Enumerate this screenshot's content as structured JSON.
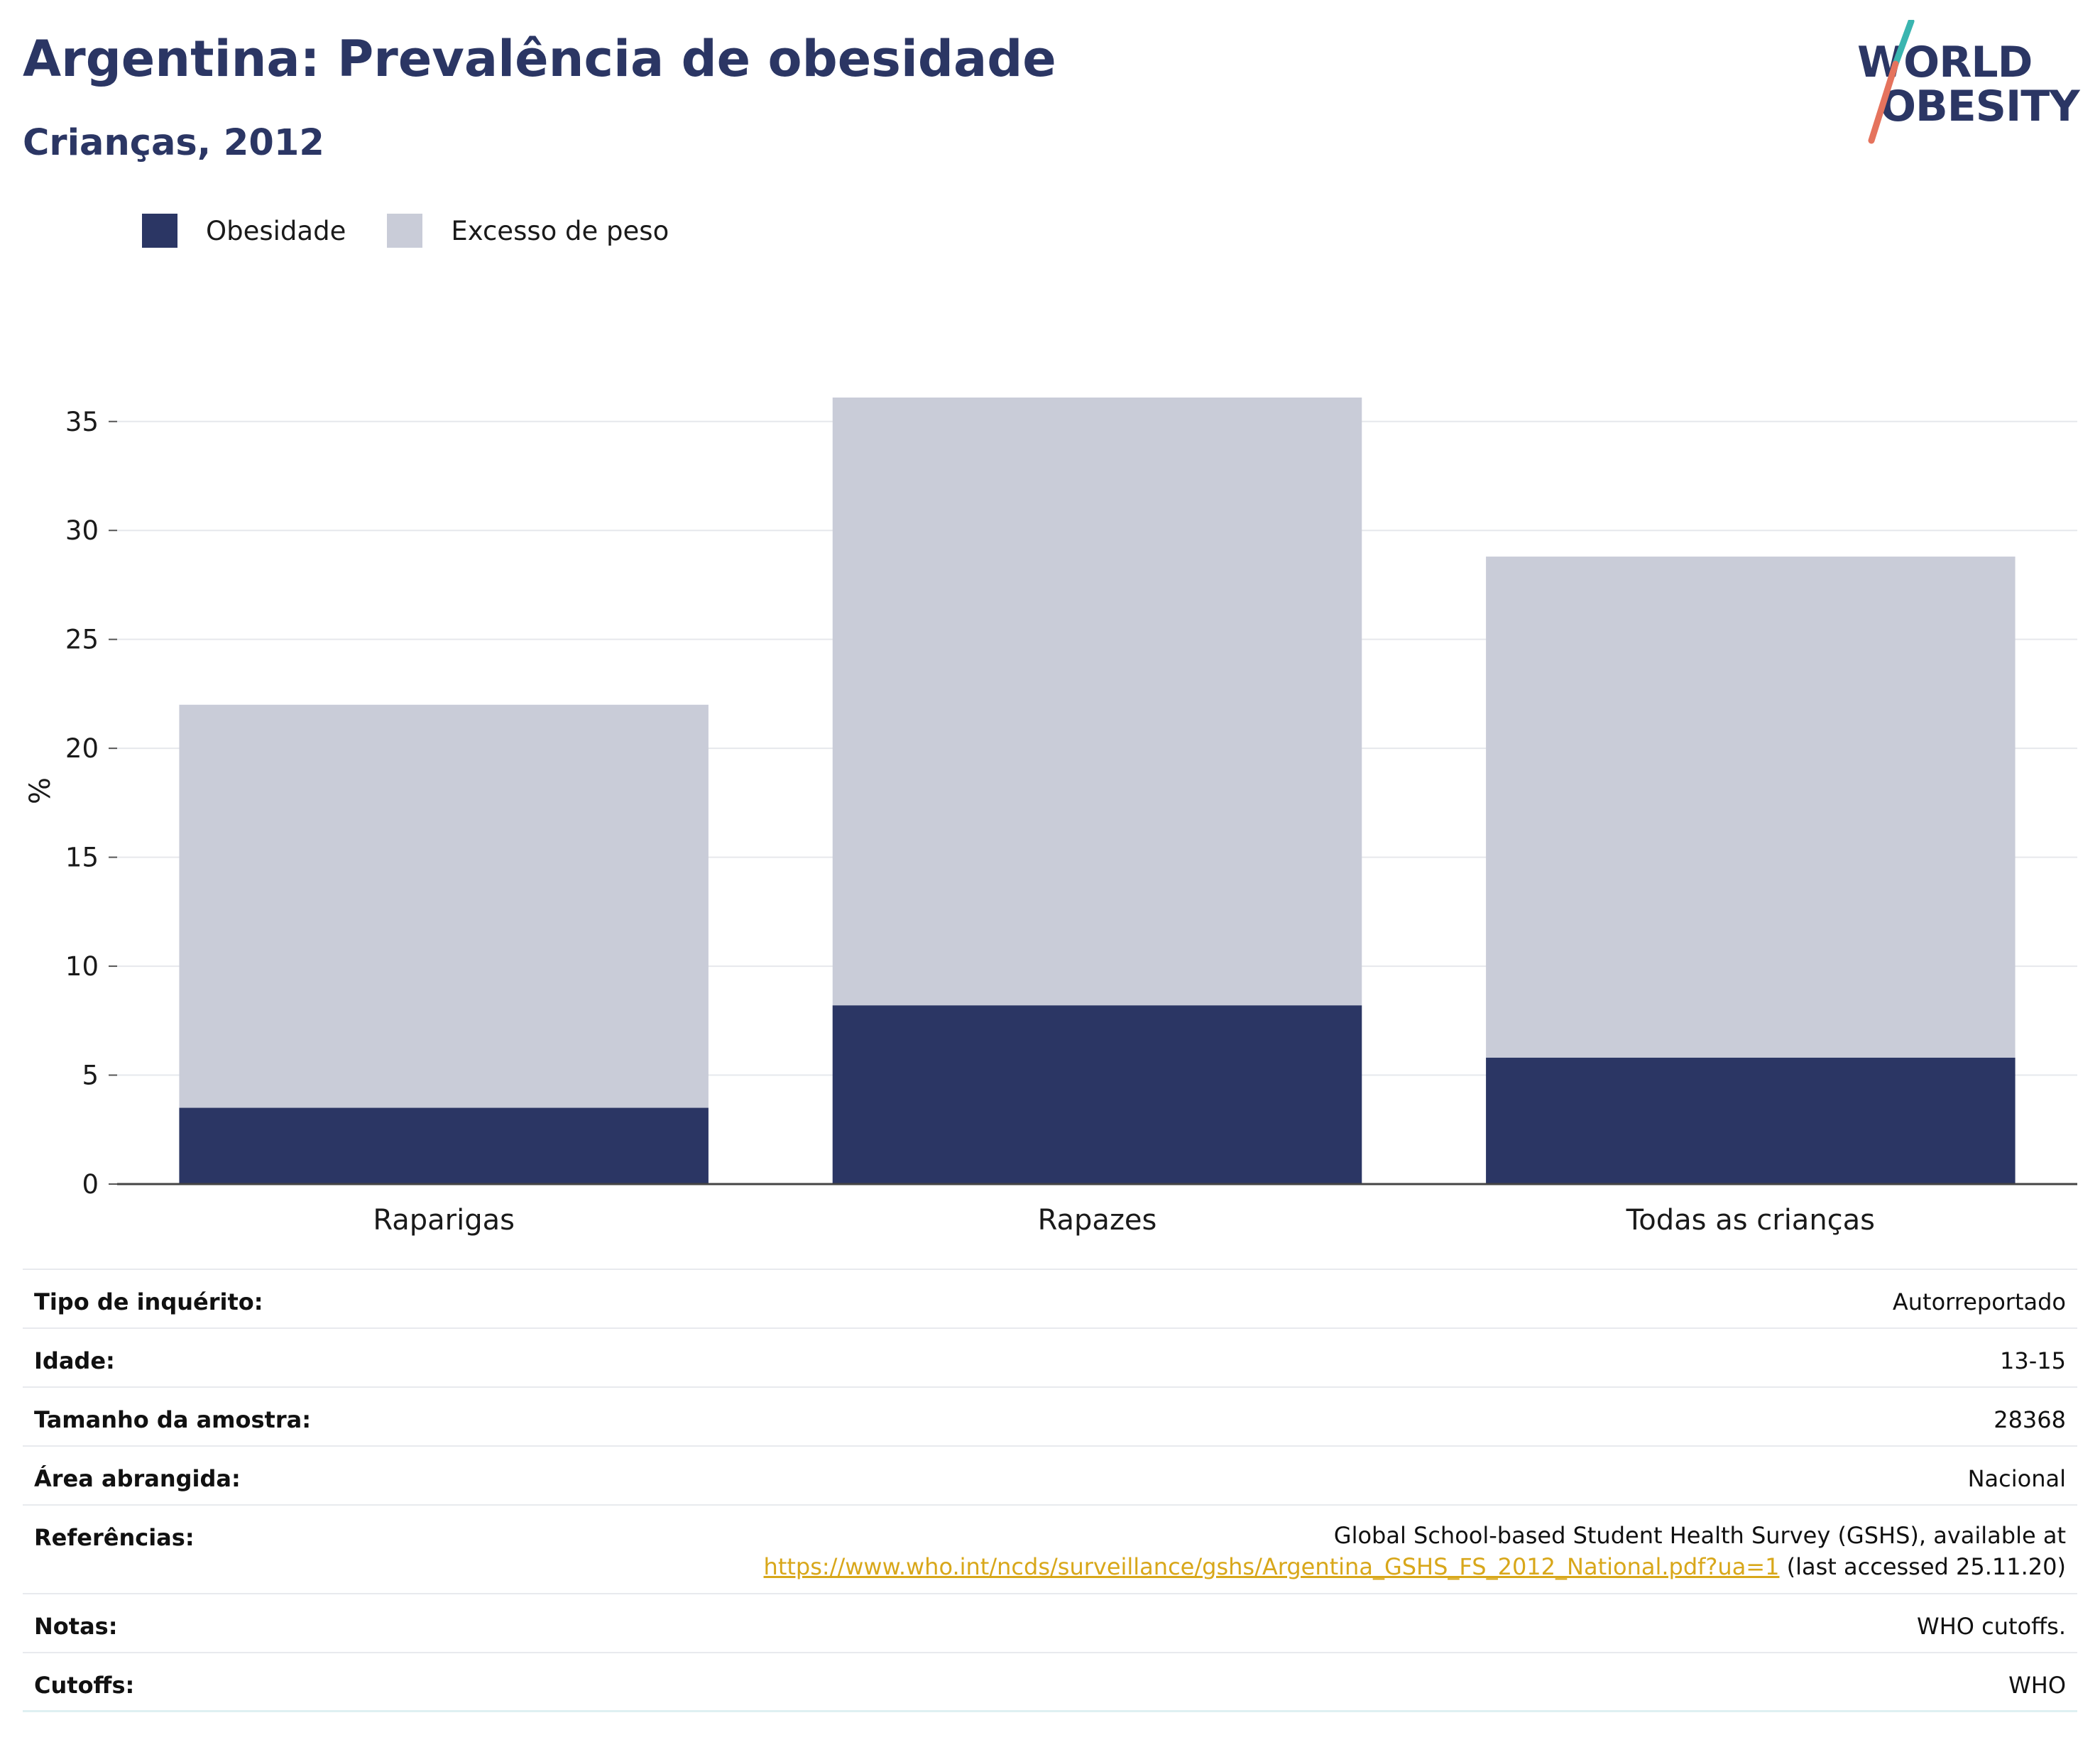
{
  "header": {
    "title": "Argentina: Prevalência de obesidade",
    "subtitle": "Crianças, 2012"
  },
  "logo": {
    "line1": "WORLD",
    "line2": "OBESITY",
    "slash_colors": [
      "#3ab5b0",
      "#e5735d"
    ]
  },
  "legend": [
    {
      "label": "Obesidade",
      "color": "#2b3664"
    },
    {
      "label": "Excesso de peso",
      "color": "#c9ccd8"
    }
  ],
  "chart_data": {
    "type": "bar",
    "stacked": false,
    "overlay": true,
    "categories": [
      "Raparigas",
      "Rapazes",
      "Todas as crianças"
    ],
    "series": [
      {
        "name": "Obesidade",
        "values": [
          3.5,
          8.2,
          5.8
        ],
        "color": "#2b3664"
      },
      {
        "name": "Excesso de peso",
        "values": [
          22.0,
          36.1,
          28.8
        ],
        "color": "#c9ccd8"
      }
    ],
    "ylabel": "%",
    "xlabel": "",
    "ylim": [
      0,
      36.1
    ],
    "yticks": [
      0,
      5,
      10,
      15,
      20,
      25,
      30,
      35
    ],
    "grid": true,
    "legend_position": "top-left"
  },
  "info": {
    "survey_type": {
      "label": "Tipo de inquérito:",
      "value": "Autorreportado"
    },
    "age": {
      "label": "Idade:",
      "value": "13-15"
    },
    "sample_size": {
      "label": "Tamanho da amostra:",
      "value": "28368"
    },
    "area": {
      "label": "Área abrangida:",
      "value": "Nacional"
    },
    "references": {
      "label": "Referências:",
      "text1": "Global School-based Student Health Survey (GSHS), available at",
      "link": "https://www.who.int/ncds/surveillance/gshs/Argentina_GSHS_FS_2012_National.pdf?ua=1",
      "text2": " (last accessed 25.11.20)"
    },
    "notes": {
      "label": "Notas:",
      "value": "WHO cutoffs."
    },
    "cutoffs": {
      "label": "Cutoffs:",
      "value": "WHO"
    }
  }
}
